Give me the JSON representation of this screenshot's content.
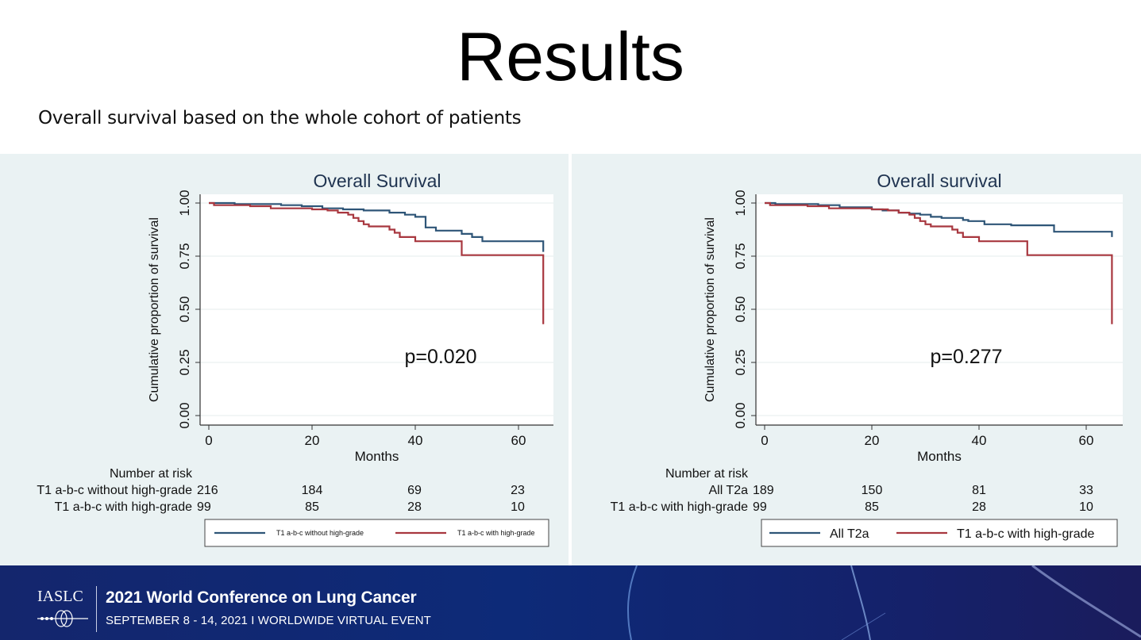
{
  "slide": {
    "title": "Results",
    "subtitle": "Overall survival based on the whole cohort of patients"
  },
  "colors": {
    "series_blue": "#2e5577",
    "series_red": "#a8373f",
    "panel_bg": "#eaf2f3",
    "title_color": "#1f3350"
  },
  "chart_data": [
    {
      "type": "line",
      "subtype": "kaplan-meier-step",
      "title": "Overall Survival",
      "xlabel": "Months",
      "ylabel": "Cumulative proportion of survival",
      "xlim": [
        0,
        65
      ],
      "ylim": [
        0,
        1
      ],
      "xticks": [
        "0",
        "20",
        "40",
        "60"
      ],
      "yticks": [
        "0.00",
        "0.25",
        "0.50",
        "0.75",
        "1.00"
      ],
      "grid": true,
      "annotation": "p=0.020",
      "legend_position": "bottom",
      "series": [
        {
          "name": "T1 a-b-c without high-grade",
          "color": "#2e5577",
          "points": [
            [
              0,
              1.0
            ],
            [
              5,
              1.0
            ],
            [
              5,
              0.995
            ],
            [
              14,
              0.995
            ],
            [
              14,
              0.99
            ],
            [
              18,
              0.99
            ],
            [
              18,
              0.985
            ],
            [
              22,
              0.985
            ],
            [
              22,
              0.975
            ],
            [
              26,
              0.975
            ],
            [
              26,
              0.97
            ],
            [
              30,
              0.97
            ],
            [
              30,
              0.965
            ],
            [
              35,
              0.965
            ],
            [
              35,
              0.955
            ],
            [
              38,
              0.955
            ],
            [
              38,
              0.945
            ],
            [
              40,
              0.945
            ],
            [
              40,
              0.935
            ],
            [
              42,
              0.935
            ],
            [
              42,
              0.885
            ],
            [
              44,
              0.885
            ],
            [
              44,
              0.87
            ],
            [
              49,
              0.87
            ],
            [
              49,
              0.855
            ],
            [
              51,
              0.855
            ],
            [
              51,
              0.84
            ],
            [
              53,
              0.84
            ],
            [
              53,
              0.82
            ],
            [
              64.8,
              0.82
            ],
            [
              64.8,
              0.77
            ]
          ]
        },
        {
          "name": "T1 a-b-c with high-grade",
          "color": "#a8373f",
          "points": [
            [
              0,
              1.0
            ],
            [
              1,
              1.0
            ],
            [
              1,
              0.99
            ],
            [
              8,
              0.99
            ],
            [
              8,
              0.985
            ],
            [
              12,
              0.985
            ],
            [
              12,
              0.975
            ],
            [
              20,
              0.975
            ],
            [
              20,
              0.97
            ],
            [
              23,
              0.97
            ],
            [
              23,
              0.965
            ],
            [
              25,
              0.965
            ],
            [
              25,
              0.955
            ],
            [
              27,
              0.955
            ],
            [
              27,
              0.945
            ],
            [
              28,
              0.945
            ],
            [
              28,
              0.93
            ],
            [
              29,
              0.93
            ],
            [
              29,
              0.915
            ],
            [
              30,
              0.915
            ],
            [
              30,
              0.9
            ],
            [
              31,
              0.9
            ],
            [
              31,
              0.89
            ],
            [
              35,
              0.89
            ],
            [
              35,
              0.875
            ],
            [
              36,
              0.875
            ],
            [
              36,
              0.86
            ],
            [
              37,
              0.86
            ],
            [
              37,
              0.84
            ],
            [
              40,
              0.84
            ],
            [
              40,
              0.82
            ],
            [
              49,
              0.82
            ],
            [
              49,
              0.755
            ],
            [
              64.8,
              0.755
            ],
            [
              64.8,
              0.43
            ]
          ]
        }
      ],
      "risk_table": {
        "header": "Number at risk",
        "times": [
          0,
          20,
          40,
          60
        ],
        "rows": [
          {
            "label": "T1 a-b-c without high-grade",
            "values": [
              "216",
              "184",
              "69",
              "23"
            ]
          },
          {
            "label": "T1 a-b-c with high-grade",
            "values": [
              "99",
              "85",
              "28",
              "10"
            ]
          }
        ]
      }
    },
    {
      "type": "line",
      "subtype": "kaplan-meier-step",
      "title": "Overall survival",
      "xlabel": "Months",
      "ylabel": "Cumulative proportion of survival",
      "xlim": [
        0,
        65
      ],
      "ylim": [
        0,
        1
      ],
      "xticks": [
        "0",
        "20",
        "40",
        "60"
      ],
      "yticks": [
        "0.00",
        "0.25",
        "0.50",
        "0.75",
        "1.00"
      ],
      "grid": true,
      "annotation": "p=0.277",
      "legend_position": "bottom",
      "series": [
        {
          "name": "All T2a",
          "color": "#2e5577",
          "points": [
            [
              0,
              1.0
            ],
            [
              2,
              1.0
            ],
            [
              2,
              0.995
            ],
            [
              10,
              0.995
            ],
            [
              10,
              0.99
            ],
            [
              14,
              0.99
            ],
            [
              14,
              0.98
            ],
            [
              20,
              0.98
            ],
            [
              20,
              0.97
            ],
            [
              22,
              0.97
            ],
            [
              22,
              0.965
            ],
            [
              25,
              0.965
            ],
            [
              25,
              0.955
            ],
            [
              27,
              0.955
            ],
            [
              27,
              0.95
            ],
            [
              29,
              0.95
            ],
            [
              29,
              0.945
            ],
            [
              31,
              0.945
            ],
            [
              31,
              0.935
            ],
            [
              33,
              0.935
            ],
            [
              33,
              0.93
            ],
            [
              37,
              0.93
            ],
            [
              37,
              0.92
            ],
            [
              38,
              0.92
            ],
            [
              38,
              0.915
            ],
            [
              41,
              0.915
            ],
            [
              41,
              0.9
            ],
            [
              46,
              0.9
            ],
            [
              46,
              0.895
            ],
            [
              54,
              0.895
            ],
            [
              54,
              0.865
            ],
            [
              64.8,
              0.865
            ],
            [
              64.8,
              0.84
            ]
          ]
        },
        {
          "name": "T1 a-b-c with high-grade",
          "color": "#a8373f",
          "points": [
            [
              0,
              1.0
            ],
            [
              1,
              1.0
            ],
            [
              1,
              0.99
            ],
            [
              8,
              0.99
            ],
            [
              8,
              0.985
            ],
            [
              12,
              0.985
            ],
            [
              12,
              0.975
            ],
            [
              20,
              0.975
            ],
            [
              20,
              0.97
            ],
            [
              23,
              0.97
            ],
            [
              23,
              0.965
            ],
            [
              25,
              0.965
            ],
            [
              25,
              0.955
            ],
            [
              27,
              0.955
            ],
            [
              27,
              0.945
            ],
            [
              28,
              0.945
            ],
            [
              28,
              0.93
            ],
            [
              29,
              0.93
            ],
            [
              29,
              0.915
            ],
            [
              30,
              0.915
            ],
            [
              30,
              0.9
            ],
            [
              31,
              0.9
            ],
            [
              31,
              0.89
            ],
            [
              35,
              0.89
            ],
            [
              35,
              0.875
            ],
            [
              36,
              0.875
            ],
            [
              36,
              0.86
            ],
            [
              37,
              0.86
            ],
            [
              37,
              0.84
            ],
            [
              40,
              0.84
            ],
            [
              40,
              0.82
            ],
            [
              49,
              0.82
            ],
            [
              49,
              0.755
            ],
            [
              64.8,
              0.755
            ],
            [
              64.8,
              0.43
            ]
          ]
        }
      ],
      "risk_table": {
        "header": "Number at risk",
        "times": [
          0,
          20,
          40,
          60
        ],
        "rows": [
          {
            "label": "All T2a",
            "values": [
              "189",
              "150",
              "81",
              "33"
            ]
          },
          {
            "label": "T1 a-b-c with high-grade",
            "values": [
              "99",
              "85",
              "28",
              "10"
            ]
          }
        ]
      }
    }
  ],
  "footer": {
    "logo_text": "IASLC",
    "conference": "2021 World Conference on Lung Cancer",
    "dates": "SEPTEMBER 8 - 14, 2021 I WORLDWIDE VIRTUAL EVENT"
  }
}
